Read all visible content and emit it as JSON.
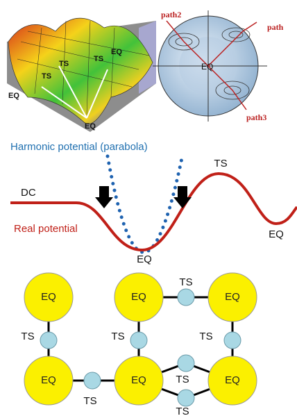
{
  "surface_panel": {
    "labels": [
      "EQ",
      "TS",
      "TS",
      "TS",
      "EQ",
      "EQ"
    ]
  },
  "sphere_panel": {
    "labels": [
      "path2",
      "path",
      "EQ",
      "path3"
    ]
  },
  "potential_panel": {
    "harmonic_label": "Harmonic potential (parabola)",
    "ts_label": "TS",
    "dc_label": "DC",
    "real_label": "Real potential",
    "eq_min_label": "EQ",
    "eq_right_label": "EQ"
  },
  "network": {
    "eq_nodes": [
      "EQ",
      "EQ",
      "EQ",
      "EQ",
      "EQ",
      "EQ"
    ],
    "ts_labels": [
      "TS",
      "TS",
      "TS",
      "TS",
      "TS",
      "TS",
      "TS"
    ]
  }
}
